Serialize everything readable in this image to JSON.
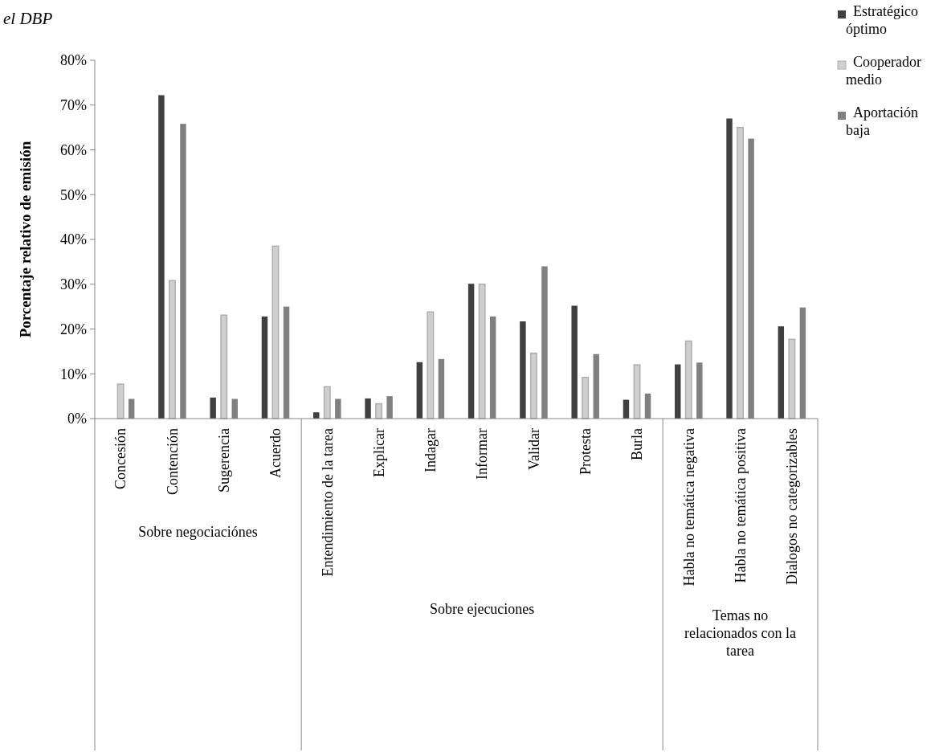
{
  "chart_data": {
    "type": "bar",
    "title": "el DBP",
    "ylabel": "Porcentaje relativo de emisión",
    "categories": [
      "Concesión",
      "Contención",
      "Sugerencia",
      "Acuerdo",
      "Entendimiento de la tarea",
      "Explicar",
      "Indagar",
      "Informar",
      "Validar",
      "Protesta",
      "Burla",
      "Habla no temática negativa",
      "Habla no temática positiva",
      "Dialogos no categorizables"
    ],
    "series": [
      {
        "name": "Estratégico óptimo",
        "color": "#404040",
        "values": [
          0,
          72.2,
          4.7,
          22.8,
          1.4,
          4.5,
          12.6,
          30.1,
          21.7,
          25.2,
          4.2,
          12.1,
          67,
          20.6
        ]
      },
      {
        "name": "Cooperador medio",
        "color": "#d0cfcf",
        "values": [
          7.7,
          30.8,
          23.1,
          38.5,
          7.1,
          3.3,
          23.8,
          30,
          14.6,
          9.2,
          12,
          17.3,
          65,
          17.7
        ]
      },
      {
        "name": "Aportación baja",
        "color": "#808080",
        "values": [
          4.4,
          65.8,
          4.4,
          25,
          4.4,
          5,
          13.3,
          22.8,
          34,
          14.4,
          5.6,
          12.5,
          62.5,
          24.8
        ]
      }
    ],
    "ylim": [
      0,
      80
    ],
    "yticks": [
      {
        "value": 0,
        "label": "0%"
      },
      {
        "value": 10,
        "label": "10%"
      },
      {
        "value": 20,
        "label": "20%"
      },
      {
        "value": 30,
        "label": "30%"
      },
      {
        "value": 40,
        "label": "40%"
      },
      {
        "value": 50,
        "label": "50%"
      },
      {
        "value": 60,
        "label": "60%"
      },
      {
        "value": 70,
        "label": "70%"
      },
      {
        "value": 80,
        "label": "80%"
      }
    ],
    "annotations": [
      "Sobre negociaciónes",
      "Sobre ejecuciones",
      "Temas no relacionados con la tarea"
    ],
    "legend": "top right",
    "grid": false
  }
}
